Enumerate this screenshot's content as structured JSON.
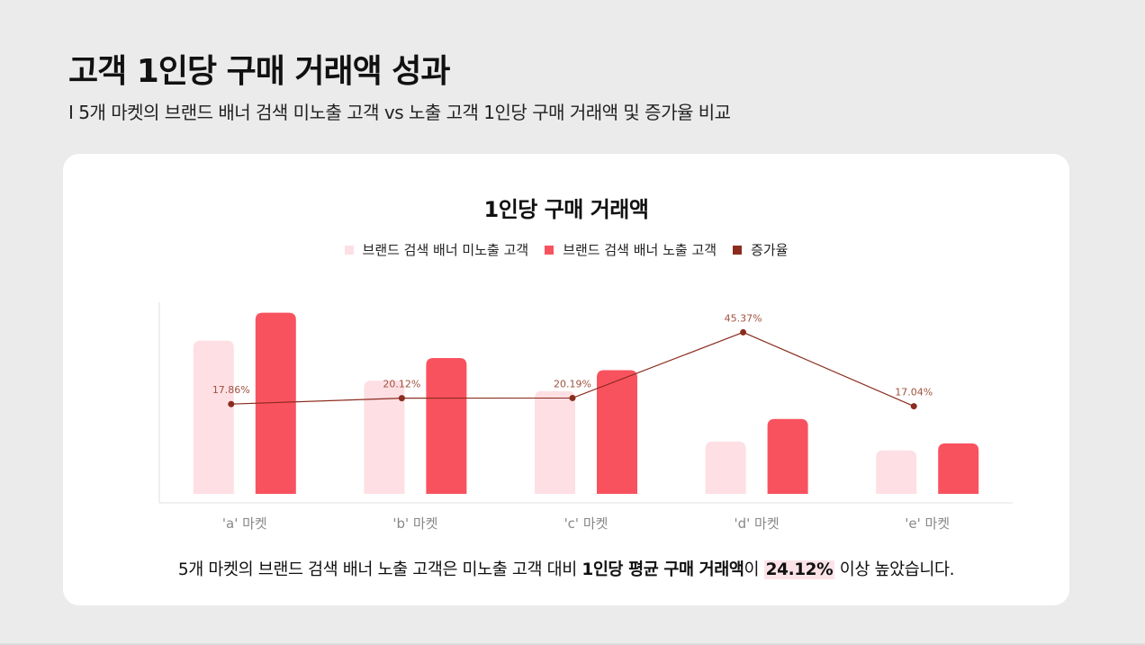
{
  "header": {
    "title": "고객 1인당 구매 거래액 성과",
    "subtitle": "I 5개 마켓의 브랜드 배너 검색 미노출 고객 vs 노출 고객 1인당 구매 거래액 및 증가율 비교"
  },
  "colors": {
    "unexposed": "#fddfe4",
    "exposed": "#f9525f",
    "growth": "#8b2c1e"
  },
  "chart_data": {
    "type": "bar",
    "title": "1인당 구매 거래액",
    "categories": [
      "'a' 마켓",
      "'b' 마켓",
      "'c' 마켓",
      "'d' 마켓",
      "'e' 마켓"
    ],
    "series": [
      {
        "name": "브랜드 검색 배너 미노출 고객",
        "type": "bar",
        "values": [
          88,
          65,
          59,
          30,
          25
        ]
      },
      {
        "name": "브랜드 검색 배너 노출 고객",
        "type": "bar",
        "values": [
          104,
          78,
          71,
          43,
          29
        ]
      },
      {
        "name": "증가율",
        "type": "line",
        "values": [
          17.86,
          20.12,
          20.19,
          45.37,
          17.04
        ],
        "labels": [
          "17.86%",
          "20.12%",
          "20.19%",
          "45.37%",
          "17.04%"
        ]
      }
    ],
    "grid": false,
    "legend": "top-center"
  },
  "summary": {
    "part1": "5개 마켓의 브랜드 검색 배너 노출 고객은 미노출 고객 대비 ",
    "bold": "1인당 평균 구매 거래액",
    "part2": "이 ",
    "highlight": "24.12%",
    "part3": " 이상 높았습니다."
  }
}
